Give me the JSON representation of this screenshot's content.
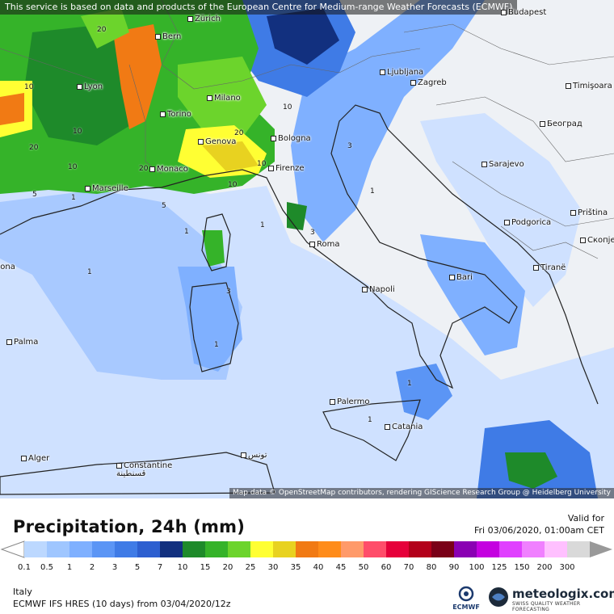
{
  "notice": "This service is based on data and products of the European Centre for Medium-range Weather Forecasts (ECMWF)",
  "attribution": "Map data © OpenStreetMap contributors, rendering GIScience Research Group @ Heidelberg University",
  "title": "Precipitation, 24h (mm)",
  "valid_label": "Valid for",
  "valid_date": "Fri 03/06/2020, 01:00am CET",
  "region": "Italy",
  "model_info": "ECMWF IFS HRES (10 days) from 03/04/2020/12z",
  "logos": {
    "ecmwf": "ECMWF",
    "meteologix": "meteologix.com",
    "meteologix_tagline": "SWISS QUALITY WEATHER FORECASTING"
  },
  "legend": {
    "values": [
      "0.1",
      "0.5",
      "1",
      "2",
      "3",
      "5",
      "7",
      "10",
      "15",
      "20",
      "25",
      "30",
      "35",
      "40",
      "45",
      "50",
      "60",
      "70",
      "80",
      "90",
      "100",
      "125",
      "150",
      "200",
      "300"
    ],
    "colors": [
      "#bcd8ff",
      "#9fc6ff",
      "#7fb0ff",
      "#5b95f5",
      "#3f7be6",
      "#2d5fd0",
      "#12307f",
      "#1e8a2a",
      "#35b329",
      "#6cd42c",
      "#ffff33",
      "#e8d220",
      "#f17a14",
      "#ff8c1a",
      "#ff9a6a",
      "#ff4d6a",
      "#e6003a",
      "#b3001a",
      "#7a0018",
      "#8a00b3",
      "#c400e0",
      "#e040ff",
      "#f080ff",
      "#ffc0ff",
      "#d9d9d9"
    ]
  },
  "cities": [
    {
      "name": "Zürich"
    },
    {
      "name": "Budapest"
    },
    {
      "name": "Bern"
    },
    {
      "name": "Lyon"
    },
    {
      "name": "Milano"
    },
    {
      "name": "Ljubljana"
    },
    {
      "name": "Zagreb"
    },
    {
      "name": "Timişoara"
    },
    {
      "name": "Torino"
    },
    {
      "name": "Genova"
    },
    {
      "name": "Bologna"
    },
    {
      "name": "Београд"
    },
    {
      "name": "Sarajevo"
    },
    {
      "name": "Monaco"
    },
    {
      "name": "Marseille"
    },
    {
      "name": "Firenze"
    },
    {
      "name": "Podgorica"
    },
    {
      "name": "Priština"
    },
    {
      "name": "Roma"
    },
    {
      "name": "Скопје"
    },
    {
      "name": "Tiranë"
    },
    {
      "name": "Bari"
    },
    {
      "name": "Barcelona"
    },
    {
      "name": "Napoli"
    },
    {
      "name": "Palma"
    },
    {
      "name": "Palermo"
    },
    {
      "name": "Catania"
    },
    {
      "name": "Alger"
    },
    {
      "name": "Constantine\nقسنطينة"
    },
    {
      "name": "تونس"
    }
  ],
  "contour_labels": [
    "20",
    "10",
    "10",
    "20",
    "10",
    "10",
    "20",
    "10",
    "20",
    "10",
    "5",
    "5",
    "3",
    "1",
    "1",
    "3",
    "1",
    "1",
    "3",
    "1",
    "1",
    "1",
    "1"
  ]
}
